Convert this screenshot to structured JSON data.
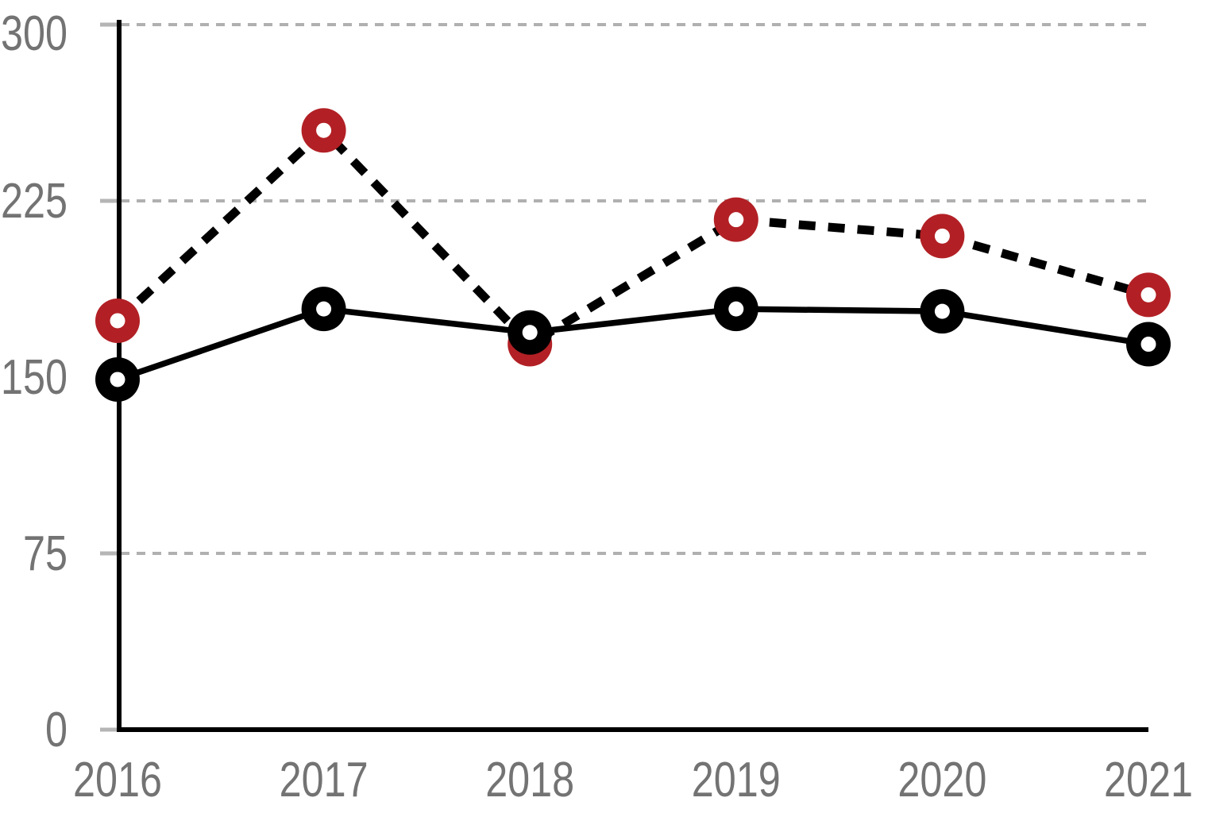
{
  "chart_data": {
    "type": "line",
    "title": "",
    "xlabel": "",
    "ylabel": "",
    "legend": "none",
    "grid": "horizontal-dashed",
    "x_categories": [
      "2016",
      "2017",
      "2018",
      "2019",
      "2020",
      "2021"
    ],
    "series": [
      {
        "name": "dashed-red-series",
        "line_style": "dashed",
        "line_color": "#000000",
        "marker_fill": "#b22025",
        "marker_hole": "#ffffff",
        "values": [
          174,
          255,
          164,
          217,
          210,
          185
        ]
      },
      {
        "name": "solid-black-series",
        "line_style": "solid",
        "line_color": "#000000",
        "marker_fill": "#000000",
        "marker_hole": "#ffffff",
        "values": [
          149,
          179,
          169,
          179,
          178,
          164
        ]
      }
    ],
    "y_axis": {
      "range": [
        0,
        300
      ],
      "ticks": [
        0,
        75,
        150,
        225,
        300
      ],
      "gridline_values": [
        75,
        225,
        300
      ],
      "label_color": "#737373",
      "tick_color": "#b5b5b5",
      "gridline_color": "#b0b0b0"
    },
    "x_axis": {
      "label_color": "#737373"
    },
    "axis_color": "#000000"
  }
}
